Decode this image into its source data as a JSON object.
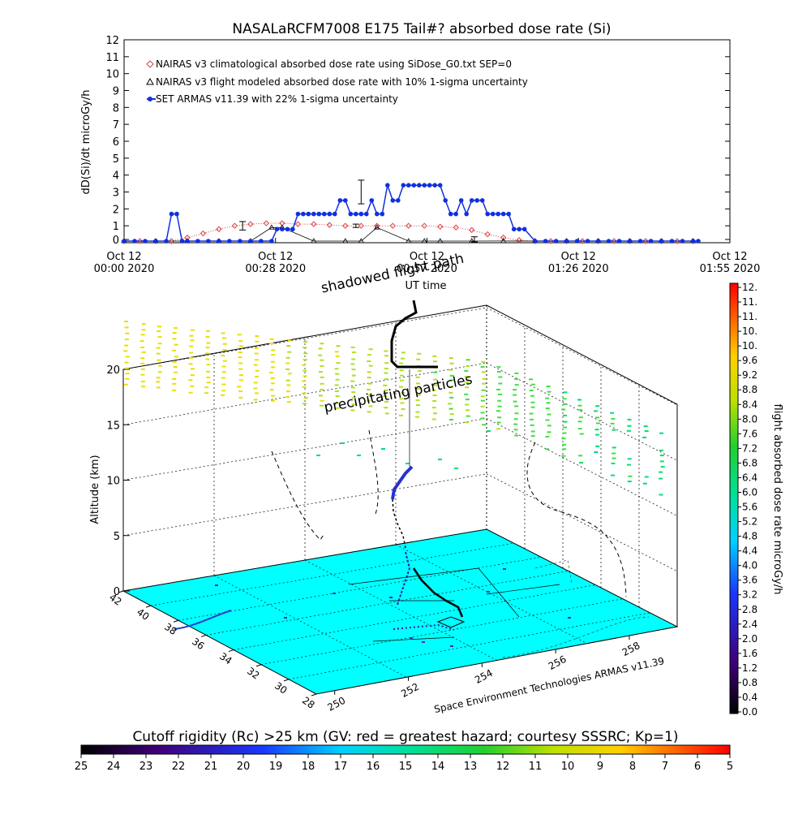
{
  "title": "NASALaRCFM7008  E175 Tail#? absorbed dose rate (Si)",
  "colors": {
    "nairas_clim": "#d84040",
    "nairas_flight": "#000000",
    "armas": "#1030e0",
    "ground": "#00ffff",
    "bg": "#ffffff"
  },
  "top_chart": {
    "ylabel": "dD(Si)/dt microGy/h",
    "y_ticks": [
      "0",
      "1",
      "2",
      "3",
      "4",
      "5",
      "6",
      "7",
      "8",
      "9",
      "10",
      "11",
      "12"
    ],
    "ylim": [
      0,
      12
    ],
    "x_ticks": [
      {
        "line1": "Oct 12",
        "line2": "00:00 2020"
      },
      {
        "line1": "Oct 12",
        "line2": "00:28 2020"
      },
      {
        "line1": "Oct 12",
        "line2": "00:57 2020"
      },
      {
        "line1": "Oct 12",
        "line2": "01:26 2020"
      },
      {
        "line1": "Oct 12",
        "line2": "01:55 2020"
      }
    ],
    "xlabel": "UT time",
    "legend": [
      "NAIRAS v3 climatological absorbed dose rate using SiDose_G0.txt SEP=0",
      "NAIRAS v3 flight modeled absorbed dose rate with 10% 1-sigma uncertainty",
      "SET ARMAS v11.39 with 22% 1-sigma uncertainty"
    ]
  },
  "chart_data": [
    {
      "type": "line",
      "title": "NASALaRCFM7008  E175 Tail#? absorbed dose rate (Si)",
      "xlabel": "UT time",
      "ylabel": "dD(Si)/dt microGy/h",
      "x_unit": "minutes after Oct 12 2020 00:00",
      "xlim": [
        0,
        115
      ],
      "ylim": [
        0,
        12
      ],
      "series": [
        {
          "name": "NAIRAS v3 climatological absorbed dose rate using SiDose_G0.txt SEP=0",
          "marker": "diamond",
          "x": [
            0,
            3,
            6,
            9,
            12,
            15,
            18,
            21,
            24,
            27,
            30,
            33,
            36,
            39,
            42,
            45,
            48,
            51,
            54,
            57,
            60,
            63,
            66,
            69,
            72,
            75,
            78,
            81,
            84,
            87,
            90,
            93,
            96,
            99,
            102,
            105,
            108
          ],
          "y": [
            0,
            0,
            0,
            0.05,
            0.3,
            0.55,
            0.8,
            1.0,
            1.1,
            1.15,
            1.15,
            1.1,
            1.1,
            1.05,
            1.0,
            1.0,
            1.0,
            1.0,
            1.0,
            1.0,
            0.95,
            0.9,
            0.75,
            0.5,
            0.3,
            0.15,
            0.08,
            0.05,
            0.03,
            0.02,
            0.01,
            0,
            0,
            0,
            0,
            0,
            0
          ]
        },
        {
          "name": "NAIRAS v3 flight modeled absorbed dose rate with 10% 1-sigma uncertainty",
          "marker": "triangle",
          "x": [
            0,
            6,
            12,
            18,
            24,
            28,
            30,
            36,
            42,
            45,
            48,
            54,
            57,
            60,
            66,
            72,
            78,
            84,
            90,
            96,
            102,
            108
          ],
          "y": [
            0,
            0,
            0,
            0,
            0,
            0.9,
            0.9,
            0,
            0,
            0,
            0.9,
            0,
            0,
            0,
            0,
            0.1,
            0,
            0,
            0,
            0,
            0,
            0
          ]
        },
        {
          "name": "SET ARMAS v11.39 with 22% 1-sigma uncertainty",
          "marker": "filled-circle",
          "x": [
            0,
            2,
            4,
            6,
            8,
            9,
            10,
            11,
            12,
            14,
            16,
            18,
            20,
            22,
            24,
            26,
            28,
            29,
            30,
            31,
            32,
            33,
            34,
            35,
            36,
            37,
            38,
            39,
            40,
            41,
            42,
            43,
            44,
            45,
            46,
            47,
            48,
            49,
            50,
            51,
            52,
            53,
            54,
            55,
            56,
            57,
            58,
            59,
            60,
            61,
            62,
            63,
            64,
            65,
            66,
            67,
            68,
            69,
            70,
            71,
            72,
            73,
            74,
            75,
            76,
            78,
            80,
            82,
            84,
            86,
            88,
            90,
            92,
            94,
            96,
            98,
            100,
            102,
            104,
            106,
            108,
            109
          ],
          "y": [
            0,
            0,
            0,
            0,
            0,
            1.7,
            1.7,
            0,
            0,
            0,
            0,
            0,
            0,
            0,
            0,
            0,
            0,
            0.8,
            0.8,
            0.8,
            0.8,
            1.7,
            1.7,
            1.7,
            1.7,
            1.7,
            1.7,
            1.7,
            1.7,
            2.5,
            2.5,
            1.7,
            1.7,
            1.7,
            1.7,
            2.5,
            1.7,
            1.7,
            3.4,
            2.5,
            2.5,
            3.4,
            3.4,
            3.4,
            3.4,
            3.4,
            3.4,
            3.4,
            3.4,
            2.5,
            1.7,
            1.7,
            2.5,
            1.7,
            2.5,
            2.5,
            2.5,
            1.7,
            1.7,
            1.7,
            1.7,
            1.7,
            0.8,
            0.8,
            0.8,
            0,
            0,
            0,
            0,
            0,
            0,
            0,
            0,
            0,
            0,
            0,
            0,
            0,
            0,
            0,
            0,
            0
          ]
        }
      ]
    },
    {
      "type": "scatter",
      "title": "shadowed flight path",
      "zlabel": "Altitude (km)",
      "z_ticks": [
        "0",
        "5",
        "10",
        "15",
        "20"
      ],
      "lat_ticks": [
        "42",
        "40",
        "38",
        "36",
        "34",
        "32",
        "30",
        "28"
      ],
      "lon_ticks": [
        "250",
        "252",
        "254",
        "256",
        "258"
      ],
      "annotations": [
        "shadowed flight path",
        "precipitating particles"
      ],
      "credit": "Space Environment Technologies ARMAS v11.39"
    },
    {
      "type": "heatmap",
      "title": "flight absorbed dose rate microGy/h",
      "colorbar_ticks": [
        "0.0",
        "0.4",
        "0.8",
        "1.2",
        "1.6",
        "2.0",
        "2.4",
        "2.8",
        "3.2",
        "3.6",
        "4.0",
        "4.4",
        "4.8",
        "5.2",
        "5.6",
        "6.0",
        "6.4",
        "6.8",
        "7.2",
        "7.6",
        "8.0",
        "8.4",
        "8.8",
        "9.2",
        "9.6",
        "10.",
        "10.",
        "11.",
        "11.",
        "12."
      ]
    },
    {
      "type": "heatmap",
      "title": "Cutoff rigidity (Rc) >25 km (GV: red = greatest hazard; courtesy SSSRC; Kp=1)",
      "colorbar_ticks": [
        "25",
        "24",
        "23",
        "22",
        "21",
        "20",
        "19",
        "18",
        "17",
        "16",
        "15",
        "14",
        "13",
        "12",
        "11",
        "10",
        "9",
        "8",
        "7",
        "6",
        "5"
      ]
    }
  ],
  "scene": {
    "subtitle": "shadowed flight path",
    "zlabel": "Altitude (km)",
    "z_ticks": [
      "0",
      "5",
      "10",
      "15",
      "20"
    ],
    "lat_ticks": [
      "42",
      "40",
      "38",
      "36",
      "34",
      "32",
      "30",
      "28"
    ],
    "lon_ticks": [
      "250",
      "252",
      "254",
      "256",
      "258"
    ],
    "annotation": "precipitating particles",
    "credit": "Space Environment Technologies ARMAS v11.39"
  },
  "right_colorbar": {
    "label": "flight absorbed dose rate microGy/h",
    "ticks": [
      "0.0",
      "0.4",
      "0.8",
      "1.2",
      "1.6",
      "2.0",
      "2.4",
      "2.8",
      "3.2",
      "3.6",
      "4.0",
      "4.4",
      "4.8",
      "5.2",
      "5.6",
      "6.0",
      "6.4",
      "6.8",
      "7.2",
      "7.6",
      "8.0",
      "8.4",
      "8.8",
      "9.2",
      "9.6",
      "10.",
      "10.",
      "11.",
      "11.",
      "12."
    ]
  },
  "bottom_colorbar": {
    "label": "Cutoff rigidity (Rc) >25 km (GV: red = greatest hazard; courtesy SSSRC; Kp=1)",
    "ticks": [
      "25",
      "24",
      "23",
      "22",
      "21",
      "20",
      "19",
      "18",
      "17",
      "16",
      "15",
      "14",
      "13",
      "12",
      "11",
      "10",
      "9",
      "8",
      "7",
      "6",
      "5"
    ]
  }
}
